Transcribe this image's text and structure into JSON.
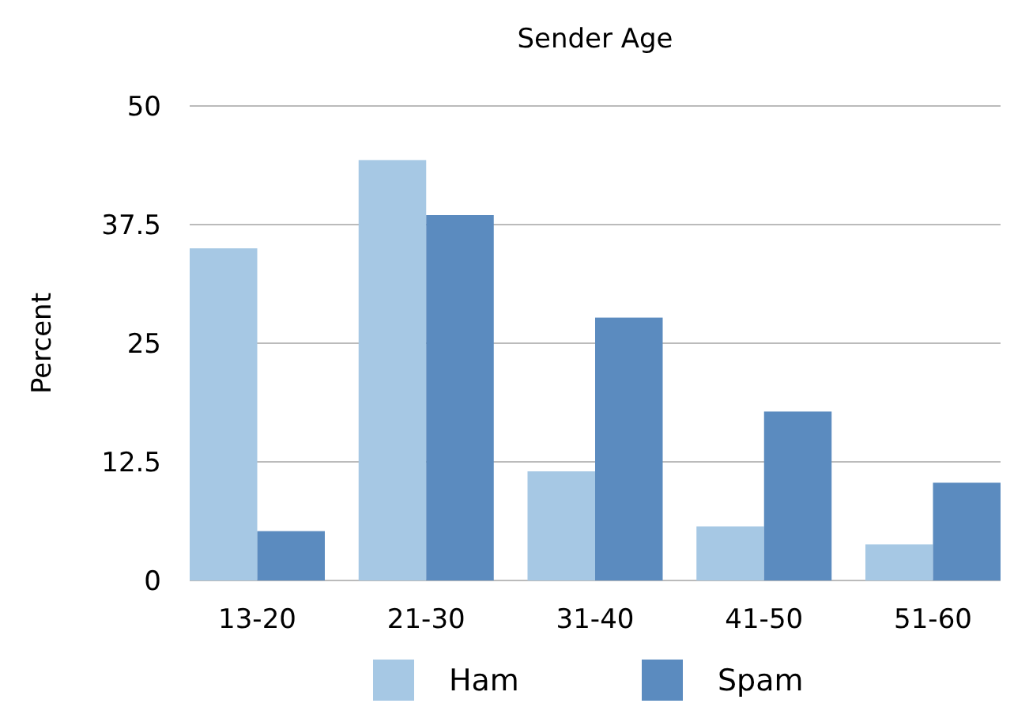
{
  "chart_data": {
    "type": "bar",
    "title": "Sender Age",
    "ylabel": "Percent",
    "categories": [
      "13-20",
      "21-30",
      "31-40",
      "41-50",
      "51-60"
    ],
    "series": [
      {
        "name": "Ham",
        "color": "#a6c8e4",
        "values": [
          35,
          44.3,
          11.5,
          5.7,
          3.8
        ]
      },
      {
        "name": "Spam",
        "color": "#5b8bbf",
        "values": [
          5.2,
          38.5,
          27.7,
          17.8,
          10.3
        ]
      }
    ],
    "ylim": [
      0,
      50
    ],
    "yticks": [
      0,
      12.5,
      25,
      37.5,
      50
    ],
    "grid": "y",
    "legend": "bottom"
  }
}
